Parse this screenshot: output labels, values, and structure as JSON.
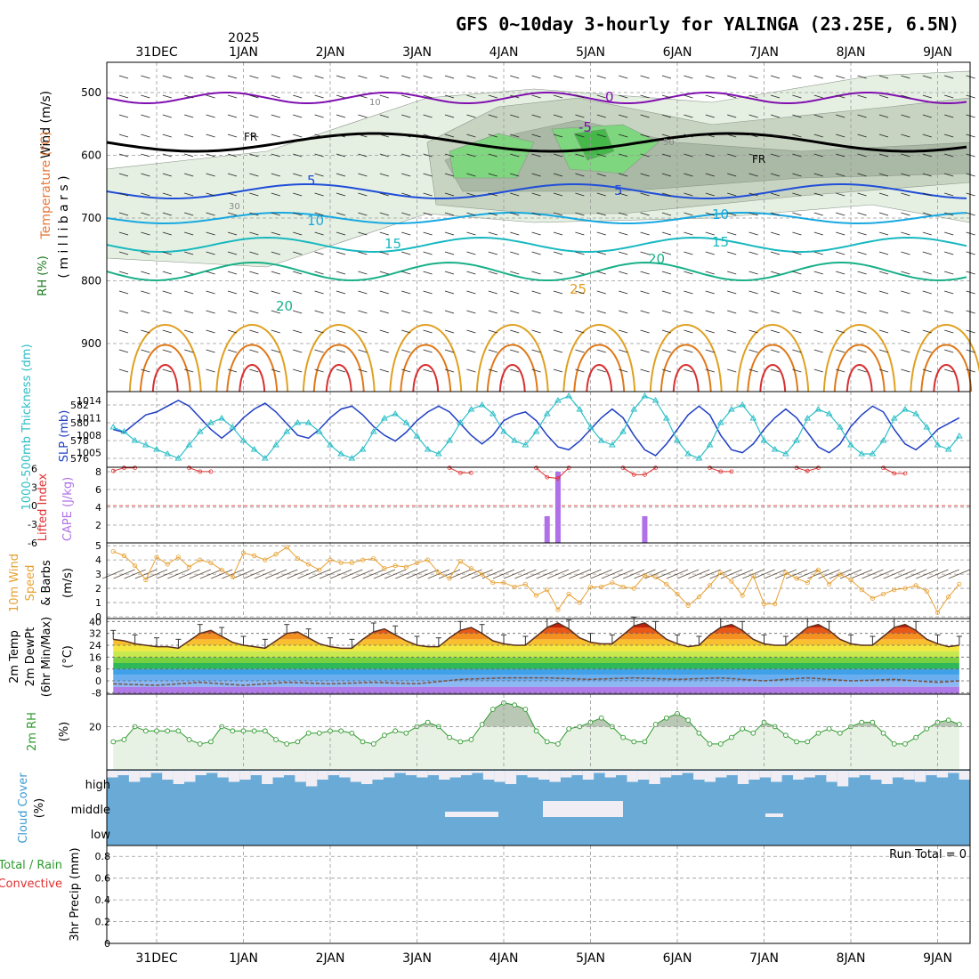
{
  "title": "GFS 0~10day 3-hourly for YALINGA (23.25E, 6.5N)",
  "year_label": "2025",
  "date_labels": [
    "31DEC",
    "1JAN",
    "2JAN",
    "3JAN",
    "4JAN",
    "5JAN",
    "6JAN",
    "7JAN",
    "8JAN",
    "9JAN"
  ],
  "date_positions_days": [
    0,
    1,
    2,
    3,
    4,
    5,
    6,
    7,
    8,
    9
  ],
  "colors": {
    "rh_light": "#e6f0e2",
    "rh_mid": "#c8d4c2",
    "rh_dark": "#aab8a6",
    "rh_green": "#7ed67e",
    "rh_green_dark": "#46b84a",
    "slp": "#1f3fc4",
    "thickness": "#2ebfc8",
    "lifted_index": "#e03030",
    "cape": "#b070e8",
    "wind_speed": "#e8a030",
    "rh2m": "#2e9a2e",
    "cloud": "#6aaad6",
    "cloud_clear": "#f0eef4",
    "precip_total": "#2e9a2e",
    "precip_conv": "#e03030",
    "t0": "#8010b0",
    "t5": "#1f4ed8",
    "t10": "#18a8e0",
    "t15": "#18b8c0",
    "t20": "#18b088",
    "t25": "#e0a020",
    "t30": "#e07818",
    "t35": "#d83030"
  },
  "panels": {
    "upper": {
      "axis_label_rh": "RH (%)",
      "axis_label_temp": "Temperature (°C)",
      "axis_label_wind": "Wind (m/s)",
      "axis_label_pressure": "( m i l l i b a r s )",
      "yticks": [
        "500",
        "600",
        "700",
        "800",
        "900"
      ],
      "isotherm_labels": [
        "0",
        "-5",
        "5",
        "10",
        "15",
        "20",
        "25"
      ],
      "freezing_label": "FR",
      "rh_labels": [
        "10",
        "30",
        "50"
      ]
    },
    "slp_thickness": {
      "label_thickness": "1000-500mb Thickness (dm)",
      "label_slp": "SLP (mb)",
      "ticks_left": [
        "582",
        "580",
        "578",
        "576"
      ],
      "ticks_right": [
        "1014",
        "1011",
        "1008",
        "1005"
      ]
    },
    "cape_li": {
      "label_li": "Lifted Index",
      "label_cape": "CAPE (J/kg)",
      "ticks_left": [
        "6",
        "3",
        "0",
        "-3",
        "-6"
      ],
      "ticks_right": [
        "8",
        "6",
        "4",
        "2"
      ]
    },
    "wind10m": {
      "label_title": "10m Wind",
      "label_speed": "Speed",
      "label_barbs": "& Barbs",
      "label_units": "(m/s)",
      "ticks": [
        "5",
        "4",
        "3",
        "2",
        "1",
        "0"
      ]
    },
    "temp2m": {
      "label_temp": "2m Temp",
      "label_dewpt": "2m DewPt",
      "label_minmax": "(6hr Min/Max)",
      "label_units": "(°C)",
      "ticks": [
        "40",
        "32",
        "24",
        "16",
        "8",
        "0",
        "-8"
      ]
    },
    "rh2m": {
      "label": "2m RH",
      "label_units": "(%)",
      "ticks": [
        "20"
      ]
    },
    "cloud": {
      "label": "Cloud Cover",
      "label_units": "(%)",
      "levels": [
        "high",
        "middle",
        "low"
      ]
    },
    "precip": {
      "label_total": "Total / Rain",
      "label_conv": "Convective",
      "label_axis": "3hr Precip (mm)",
      "ticks": [
        "0.8",
        "0.6",
        "0.4",
        "0.2",
        "0"
      ],
      "run_total": "Run Total = 0"
    }
  },
  "chart_data": [
    {
      "type": "line",
      "title": "SLP (mb)",
      "x_unit": "days from 31DEC 00Z",
      "x": [
        -0.5,
        -0.375,
        -0.25,
        -0.125,
        0,
        0.125,
        0.25,
        0.375,
        0.5,
        0.625,
        0.75,
        0.875,
        1,
        1.125,
        1.25,
        1.375,
        1.5,
        1.625,
        1.75,
        1.875,
        2,
        2.125,
        2.25,
        2.375,
        2.5,
        2.625,
        2.75,
        2.875,
        3,
        3.125,
        3.25,
        3.375,
        3.5,
        3.625,
        3.75,
        3.875,
        4,
        4.125,
        4.25,
        4.375,
        4.5,
        4.625,
        4.75,
        4.875,
        5,
        5.125,
        5.25,
        5.375,
        5.5,
        5.625,
        5.75,
        5.875,
        6,
        6.125,
        6.25,
        6.375,
        6.5,
        6.625,
        6.75,
        6.875,
        7,
        7.125,
        7.25,
        7.375,
        7.5,
        7.625,
        7.75,
        7.875,
        8,
        8.125,
        8.25,
        8.375,
        8.5,
        8.625,
        8.75,
        8.875,
        9,
        9.125,
        9.25
      ],
      "values": [
        1009,
        1008.5,
        1010,
        1011.5,
        1012,
        1013,
        1014,
        1013,
        1011,
        1009,
        1007.5,
        1009,
        1011,
        1012.5,
        1013.5,
        1012,
        1010,
        1008,
        1007.5,
        1009,
        1011,
        1012.5,
        1013,
        1011.5,
        1009.5,
        1008,
        1007,
        1008.5,
        1010.5,
        1012,
        1013,
        1012,
        1010,
        1008,
        1006.5,
        1008,
        1010.5,
        1011.5,
        1012,
        1010.5,
        1008,
        1006,
        1005.5,
        1007,
        1009,
        1011,
        1012.5,
        1011,
        1008,
        1005.5,
        1004.5,
        1006.5,
        1009,
        1011.5,
        1013,
        1011.5,
        1008,
        1005.5,
        1005,
        1006.5,
        1009,
        1011,
        1012.5,
        1011,
        1008.5,
        1006,
        1005,
        1006.5,
        1009.5,
        1011.5,
        1013,
        1012,
        1009,
        1006.5,
        1005.5,
        1007,
        1009,
        1010,
        1011
      ],
      "ylim": [
        1002.5,
        1015.5
      ]
    },
    {
      "type": "line",
      "title": "1000-500mb Thickness (dm)",
      "x_unit": "days from 31DEC 00Z",
      "x": [
        -0.5,
        -0.375,
        -0.25,
        -0.125,
        0,
        0.125,
        0.25,
        0.375,
        0.5,
        0.625,
        0.75,
        0.875,
        1,
        1.125,
        1.25,
        1.375,
        1.5,
        1.625,
        1.75,
        1.875,
        2,
        2.125,
        2.25,
        2.375,
        2.5,
        2.625,
        2.75,
        2.875,
        3,
        3.125,
        3.25,
        3.375,
        3.5,
        3.625,
        3.75,
        3.875,
        4,
        4.125,
        4.25,
        4.375,
        4.5,
        4.625,
        4.75,
        4.875,
        5,
        5.125,
        5.25,
        5.375,
        5.5,
        5.625,
        5.75,
        5.875,
        6,
        6.125,
        6.25,
        6.375,
        6.5,
        6.625,
        6.75,
        6.875,
        7,
        7.125,
        7.25,
        7.375,
        7.5,
        7.625,
        7.75,
        7.875,
        8,
        8.125,
        8.25,
        8.375,
        8.5,
        8.625,
        8.75,
        8.875,
        9,
        9.125,
        9.25
      ],
      "values": [
        579.5,
        579,
        578,
        577.5,
        577,
        576.5,
        576,
        577.5,
        579,
        580,
        580.5,
        579.5,
        578,
        577,
        576,
        577.5,
        579,
        580,
        580,
        579,
        577.5,
        576.5,
        576,
        577,
        579,
        580.5,
        581,
        580,
        578.5,
        577,
        576.5,
        578,
        580,
        581.5,
        582,
        581,
        579,
        578,
        577.5,
        579,
        581,
        582.5,
        583,
        581.5,
        579.5,
        578,
        577.5,
        579,
        581.5,
        583,
        582.5,
        580.5,
        578,
        576.5,
        576,
        577.5,
        580,
        581.5,
        582,
        580.5,
        578,
        577,
        576.5,
        578,
        580.5,
        581.5,
        581,
        579.5,
        577.5,
        576.5,
        576.5,
        578,
        580.5,
        581.5,
        581,
        579.5,
        577.5,
        577,
        578.5
      ],
      "ylim": [
        575,
        583.5
      ]
    },
    {
      "type": "bar",
      "title": "CAPE (J/kg)",
      "x_unit": "days from 31DEC 00Z",
      "x": [
        4.5,
        4.625,
        5.625
      ],
      "values": [
        3,
        8,
        3
      ],
      "ylim": [
        0,
        8.5
      ]
    },
    {
      "type": "line",
      "title": "Lifted Index",
      "x_unit": "days from 31DEC 00Z",
      "x": [
        -0.5,
        -0.375,
        -0.25,
        0.375,
        0.5,
        0.625,
        3.375,
        3.5,
        3.625,
        4.375,
        4.5,
        4.625,
        4.75,
        5.375,
        5.5,
        5.625,
        5.75,
        6.375,
        6.5,
        6.625,
        7.375,
        7.5,
        7.625,
        8.375,
        8.5,
        8.625
      ],
      "values": [
        5.6,
        6.1,
        6.1,
        6.1,
        5.5,
        5.5,
        6.1,
        5.3,
        5.3,
        6.1,
        4.6,
        4.4,
        6.1,
        6.1,
        5.0,
        5.0,
        6.1,
        6.1,
        5.5,
        5.5,
        6.1,
        5.6,
        6.1,
        6.1,
        5.2,
        5.2
      ],
      "ylim": [
        -6,
        6.2
      ]
    },
    {
      "type": "line",
      "title": "10m Wind Speed (m/s)",
      "x_unit": "days from 31DEC 00Z",
      "x": [
        -0.5,
        -0.375,
        -0.25,
        -0.125,
        0,
        0.125,
        0.25,
        0.375,
        0.5,
        0.625,
        0.75,
        0.875,
        1,
        1.125,
        1.25,
        1.375,
        1.5,
        1.625,
        1.75,
        1.875,
        2,
        2.125,
        2.25,
        2.375,
        2.5,
        2.625,
        2.75,
        2.875,
        3,
        3.125,
        3.25,
        3.375,
        3.5,
        3.625,
        3.75,
        3.875,
        4,
        4.125,
        4.25,
        4.375,
        4.5,
        4.625,
        4.75,
        4.875,
        5,
        5.125,
        5.25,
        5.375,
        5.5,
        5.625,
        5.75,
        5.875,
        6,
        6.125,
        6.25,
        6.375,
        6.5,
        6.625,
        6.75,
        6.875,
        7,
        7.125,
        7.25,
        7.375,
        7.5,
        7.625,
        7.75,
        7.875,
        8,
        8.125,
        8.25,
        8.375,
        8.5,
        8.625,
        8.75,
        8.875,
        9,
        9.125,
        9.25
      ],
      "values": [
        4.6,
        4.3,
        3.6,
        2.6,
        4.2,
        3.7,
        4.2,
        3.5,
        4.0,
        3.8,
        3.3,
        2.8,
        4.5,
        4.3,
        4.0,
        4.4,
        4.9,
        4.1,
        3.7,
        3.3,
        4.0,
        3.8,
        3.8,
        4.0,
        4.1,
        3.4,
        3.6,
        3.5,
        3.8,
        4.0,
        3.1,
        2.7,
        3.9,
        3.4,
        3.0,
        2.4,
        2.4,
        2.1,
        2.3,
        1.5,
        1.9,
        0.5,
        1.6,
        1.0,
        2.1,
        2.1,
        2.4,
        2.1,
        2.0,
        2.9,
        2.8,
        2.3,
        1.6,
        0.8,
        1.4,
        2.2,
        3.1,
        2.5,
        1.5,
        2.9,
        0.9,
        0.9,
        3.1,
        2.7,
        2.4,
        3.3,
        2.3,
        3.0,
        2.6,
        1.9,
        1.3,
        1.6,
        1.9,
        2.0,
        2.2,
        1.8,
        0.3,
        1.4,
        2.3
      ],
      "ylim": [
        0,
        5.2
      ]
    },
    {
      "type": "area",
      "title": "2m Temp (°C)",
      "x_unit": "days from 31DEC 00Z",
      "x": [
        -0.5,
        -0.375,
        -0.25,
        -0.125,
        0,
        0.125,
        0.25,
        0.375,
        0.5,
        0.625,
        0.75,
        0.875,
        1,
        1.125,
        1.25,
        1.375,
        1.5,
        1.625,
        1.75,
        1.875,
        2,
        2.125,
        2.25,
        2.375,
        2.5,
        2.625,
        2.75,
        2.875,
        3,
        3.125,
        3.25,
        3.375,
        3.5,
        3.625,
        3.75,
        3.875,
        4,
        4.125,
        4.25,
        4.375,
        4.5,
        4.625,
        4.75,
        4.875,
        5,
        5.125,
        5.25,
        5.375,
        5.5,
        5.625,
        5.75,
        5.875,
        6,
        6.125,
        6.25,
        6.375,
        6.5,
        6.625,
        6.75,
        6.875,
        7,
        7.125,
        7.25,
        7.375,
        7.5,
        7.625,
        7.75,
        7.875,
        8,
        8.125,
        8.25,
        8.375,
        8.5,
        8.625,
        8.75,
        8.875,
        9,
        9.125,
        9.25
      ],
      "values": [
        28,
        27,
        25,
        24,
        23,
        23,
        22,
        27,
        32,
        34,
        30,
        26,
        24,
        23,
        22,
        27,
        32,
        33,
        29,
        25,
        23,
        22,
        22,
        28,
        33,
        35,
        31,
        27,
        24,
        23,
        23,
        29,
        34,
        36,
        32,
        27,
        25,
        24,
        24,
        30,
        36,
        39,
        35,
        29,
        26,
        25,
        25,
        31,
        37,
        39,
        34,
        28,
        25,
        23,
        24,
        31,
        36,
        38,
        34,
        28,
        25,
        24,
        24,
        30,
        36,
        38,
        34,
        28,
        25,
        24,
        24,
        30,
        36,
        38,
        34,
        28,
        25,
        23,
        24
      ],
      "ylim": [
        -9,
        42
      ]
    },
    {
      "type": "line",
      "title": "2m DewPt (°C)",
      "x_unit": "days from 31DEC 00Z",
      "x": [
        -0.5,
        0,
        0.5,
        1,
        1.5,
        2,
        2.5,
        3,
        3.5,
        4,
        4.5,
        5,
        5.5,
        6,
        6.5,
        7,
        7.5,
        8,
        8.5,
        9,
        9.25
      ],
      "values": [
        -2,
        -3,
        -1,
        -3,
        -1,
        -2,
        -1,
        -2,
        1,
        2,
        2,
        1,
        2,
        1,
        2,
        0,
        2,
        0,
        1,
        -1,
        0
      ],
      "ylim": [
        -9,
        42
      ]
    },
    {
      "type": "line",
      "title": "2m RH (%)",
      "x_unit": "days from 31DEC 00Z",
      "x": [
        -0.5,
        -0.375,
        -0.25,
        -0.125,
        0,
        0.125,
        0.25,
        0.375,
        0.5,
        0.625,
        0.75,
        0.875,
        1,
        1.125,
        1.25,
        1.375,
        1.5,
        1.625,
        1.75,
        1.875,
        2,
        2.125,
        2.25,
        2.375,
        2.5,
        2.625,
        2.75,
        2.875,
        3,
        3.125,
        3.25,
        3.375,
        3.5,
        3.625,
        3.75,
        3.875,
        4,
        4.125,
        4.25,
        4.375,
        4.5,
        4.625,
        4.75,
        4.875,
        5,
        5.125,
        5.25,
        5.375,
        5.5,
        5.625,
        5.75,
        5.875,
        6,
        6.125,
        6.25,
        6.375,
        6.5,
        6.625,
        6.75,
        6.875,
        7,
        7.125,
        7.25,
        7.375,
        7.5,
        7.625,
        7.75,
        7.875,
        8,
        8.125,
        8.25,
        8.375,
        8.5,
        8.625,
        8.75,
        8.875,
        9,
        9.125,
        9.25
      ],
      "values": [
        13,
        14,
        20,
        18,
        18,
        18,
        18,
        14,
        12,
        13,
        20,
        18,
        18,
        18,
        18,
        14,
        12,
        13,
        17,
        17,
        18,
        18,
        17,
        13,
        12,
        16,
        18,
        17,
        20,
        22,
        20,
        15,
        13,
        14,
        21,
        28,
        31,
        30,
        28,
        18,
        13,
        12,
        19,
        20,
        22,
        24,
        20,
        15,
        13,
        13,
        21,
        24,
        26,
        23,
        17,
        12,
        12,
        15,
        19,
        17,
        22,
        20,
        16,
        13,
        13,
        17,
        19,
        17,
        20,
        22,
        22,
        17,
        12,
        12,
        15,
        19,
        22,
        23,
        21
      ],
      "ylim": [
        0,
        35
      ]
    },
    {
      "type": "bar",
      "title": "3hr Precip (mm)",
      "x_unit": "days from 31DEC 00Z",
      "x": [],
      "values": [],
      "ylim": [
        0,
        0.9
      ]
    }
  ]
}
